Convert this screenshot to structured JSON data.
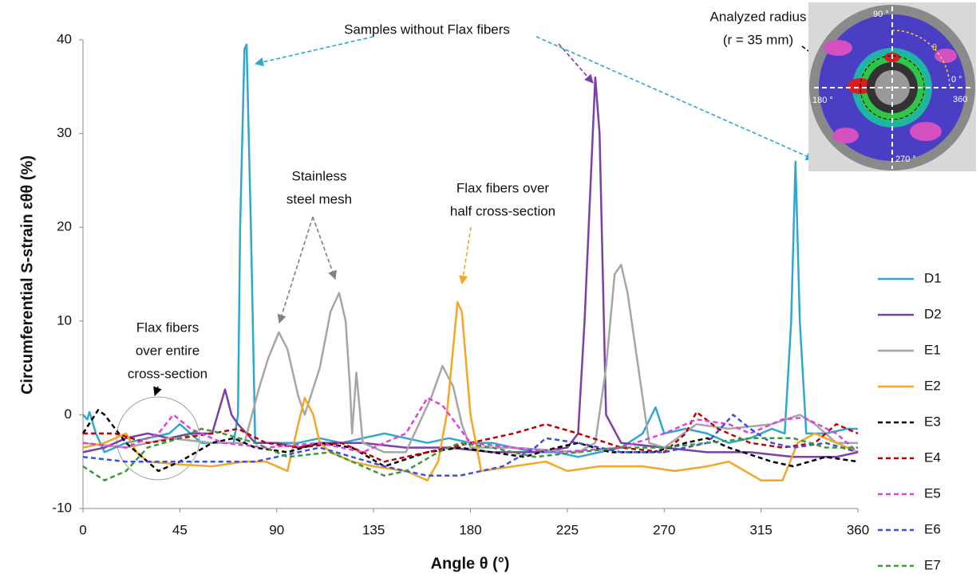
{
  "chart_data": {
    "type": "line",
    "y_label": "Circumferential S-strain εθθ (%)",
    "x_label": "Angle θ (°)",
    "xlim": [
      0,
      360
    ],
    "xticks": [
      0,
      45,
      90,
      135,
      180,
      225,
      270,
      315,
      360
    ],
    "ylim": [
      -10,
      40
    ],
    "yticks": [
      -10,
      0,
      10,
      20,
      30,
      40
    ],
    "grid": false,
    "legend": "right",
    "annotations": {
      "no_flax": [
        "Samples without Flax fibers"
      ],
      "mesh": [
        "Stainless",
        "steel mesh"
      ],
      "half": [
        "Flax fibers over",
        "half cross-section"
      ],
      "entire": [
        "Flax fibers",
        "over entire",
        "cross-section"
      ],
      "radius": [
        "Analyzed radius",
        "(r = 35 mm)"
      ]
    },
    "inset_labels": {
      "top": "90 °",
      "theta": "θ",
      "right": "0 °",
      "right2": "360",
      "left": "180 °",
      "bottom": "270 °"
    },
    "series": [
      {
        "name": "D1",
        "color": "#2ea8d0",
        "dashed": false,
        "x": [
          0,
          2,
          3,
          6,
          10,
          20,
          30,
          40,
          45,
          55,
          65,
          70,
          72,
          73,
          75,
          76,
          78,
          80,
          90,
          100,
          110,
          120,
          130,
          140,
          150,
          160,
          170,
          180,
          190,
          200,
          210,
          220,
          230,
          240,
          250,
          260,
          266,
          270,
          280,
          290,
          300,
          310,
          320,
          326,
          329,
          331,
          333,
          336,
          345,
          355,
          360
        ],
        "values": [
          0,
          -0.5,
          0.3,
          -2,
          -4,
          -3,
          -2.5,
          -2,
          -1,
          -3,
          -3,
          -3,
          0,
          20,
          39,
          39.5,
          20,
          -3,
          -3,
          -3,
          -2.5,
          -3,
          -2.5,
          -2,
          -2.5,
          -3,
          -2.5,
          -3,
          -3,
          -3.5,
          -4,
          -4,
          -4.5,
          -4,
          -3.5,
          -2,
          0.8,
          -2,
          -1.5,
          -2,
          -3,
          -2.5,
          -1.5,
          -2,
          10,
          27,
          10,
          -2,
          -2,
          -1.5,
          -1.5
        ]
      },
      {
        "name": "D2",
        "color": "#7b3fa5",
        "dashed": false,
        "x": [
          0,
          10,
          20,
          30,
          40,
          50,
          60,
          66,
          69,
          72,
          80,
          90,
          100,
          110,
          130,
          150,
          170,
          190,
          210,
          225,
          230,
          233,
          238,
          240,
          243,
          250,
          270,
          290,
          310,
          330,
          350,
          360
        ],
        "values": [
          -4,
          -3.5,
          -2.5,
          -2,
          -2.5,
          -2,
          -2,
          2.7,
          0,
          -1,
          -3,
          -3,
          -3.5,
          -3,
          -3,
          -3.5,
          -3.5,
          -4,
          -4,
          -3.5,
          -2,
          10,
          36,
          30,
          0,
          -3,
          -3.5,
          -4,
          -4,
          -4.5,
          -4.5,
          -4
        ]
      },
      {
        "name": "E1",
        "color": "#a6a6a6",
        "dashed": false,
        "x": [
          0,
          20,
          40,
          60,
          75,
          82,
          86,
          91,
          95,
          100,
          103,
          110,
          115,
          119,
          122,
          124,
          125,
          127,
          130,
          140,
          150,
          162,
          167,
          172,
          176,
          180,
          200,
          230,
          238,
          243,
          247,
          250,
          253,
          258,
          263,
          270,
          285,
          300,
          320,
          333,
          340,
          350,
          360
        ],
        "values": [
          -3,
          -3.5,
          -2.5,
          -3,
          -3,
          3,
          6,
          8.8,
          7,
          2,
          0,
          5,
          11,
          13,
          10,
          3,
          -2,
          4.5,
          -3,
          -4,
          -4,
          2,
          5.2,
          3,
          -1,
          -3.5,
          -3.5,
          -4,
          -3,
          5,
          15,
          16,
          13,
          5,
          -3,
          -3.5,
          -1,
          -1.5,
          -1,
          0,
          -1,
          -3,
          -3
        ]
      },
      {
        "name": "E2",
        "color": "#f5a623",
        "dashed": false,
        "x": [
          0,
          10,
          20,
          25,
          30,
          45,
          60,
          75,
          85,
          95,
          100,
          103,
          107,
          110,
          115,
          125,
          135,
          150,
          160,
          165,
          169,
          174,
          176,
          180,
          185,
          200,
          215,
          225,
          240,
          260,
          275,
          290,
          300,
          315,
          325,
          332,
          340,
          350,
          360
        ],
        "values": [
          -3.5,
          -3,
          -2,
          -4,
          -5,
          -5.3,
          -5.5,
          -5,
          -5,
          -6,
          -1,
          1.8,
          0,
          -3,
          -4,
          -5,
          -5.5,
          -6,
          -7,
          -5,
          0,
          12,
          11,
          0,
          -6,
          -5.5,
          -5,
          -6,
          -5.5,
          -5.5,
          -6,
          -5.5,
          -5,
          -7,
          -7,
          -3,
          -2,
          -3,
          -4
        ]
      },
      {
        "name": "E3",
        "color": "#000000",
        "dashed": true,
        "x": [
          0,
          7,
          10,
          20,
          35,
          45,
          60,
          70,
          80,
          95,
          110,
          125,
          140,
          160,
          175,
          190,
          205,
          220,
          230,
          245,
          265,
          280,
          290,
          300,
          320,
          330,
          345,
          360
        ],
        "values": [
          -2,
          0.5,
          0,
          -3,
          -6,
          -5,
          -3,
          -2.5,
          -3.5,
          -4,
          -3,
          -3.5,
          -5.5,
          -4,
          -3.5,
          -4,
          -4.5,
          -3.5,
          -3,
          -4,
          -4,
          -3,
          -2.5,
          -3.5,
          -5,
          -5.5,
          -4.5,
          -5
        ]
      },
      {
        "name": "E4",
        "color": "#c00000",
        "dashed": true,
        "x": [
          0,
          15,
          30,
          45,
          60,
          72,
          85,
          100,
          120,
          140,
          160,
          180,
          200,
          215,
          230,
          250,
          270,
          280,
          285,
          295,
          310,
          325,
          340,
          350,
          360
        ],
        "values": [
          -2,
          -2,
          -3,
          -2.5,
          -2,
          -1.5,
          -3,
          -3.5,
          -3,
          -5,
          -4,
          -3,
          -2,
          -1,
          -2,
          -3.5,
          -4,
          -2,
          0.3,
          -1.5,
          -3,
          -3.5,
          -3,
          -1,
          -2
        ]
      },
      {
        "name": "E5",
        "color": "#e040e0",
        "dashed": true,
        "x": [
          0,
          20,
          35,
          42,
          50,
          65,
          85,
          110,
          130,
          150,
          160,
          167,
          180,
          200,
          220,
          250,
          270,
          285,
          300,
          310,
          325,
          335,
          350,
          360
        ],
        "values": [
          -3,
          -3.5,
          -2,
          0,
          -1.5,
          -3,
          -3.5,
          -3,
          -4,
          -2,
          1.8,
          1,
          -3,
          -3.5,
          -4,
          -3.5,
          -2,
          -0.5,
          -1,
          -2,
          -0.5,
          -0.3,
          -2,
          -4
        ]
      },
      {
        "name": "E6",
        "color": "#3b4fe0",
        "dashed": true,
        "x": [
          0,
          20,
          50,
          80,
          100,
          110,
          125,
          140,
          160,
          175,
          195,
          210,
          215,
          230,
          250,
          270,
          290,
          302,
          310,
          320,
          330,
          345,
          360
        ],
        "values": [
          -4.5,
          -5,
          -5,
          -5,
          -4,
          -3.5,
          -4.5,
          -5.5,
          -6.5,
          -6.5,
          -5.5,
          -3.5,
          -2.5,
          -3,
          -4,
          -4,
          -3,
          0,
          -1.5,
          -3,
          -3.5,
          -3,
          -4
        ]
      },
      {
        "name": "E7",
        "color": "#3a9a3a",
        "dashed": true,
        "x": [
          0,
          10,
          20,
          30,
          45,
          55,
          65,
          80,
          95,
          115,
          130,
          140,
          150,
          165,
          175,
          190,
          210,
          230,
          250,
          270,
          290,
          310,
          330,
          345,
          360
        ],
        "values": [
          -5.5,
          -7,
          -6,
          -3.5,
          -2.5,
          -1.5,
          -2,
          -3,
          -4.5,
          -4,
          -5.5,
          -6.5,
          -6,
          -4,
          -3,
          -3.5,
          -4.5,
          -4,
          -3.5,
          -3.5,
          -3,
          -2.5,
          -2.5,
          -3.5,
          -3.5
        ]
      }
    ]
  }
}
